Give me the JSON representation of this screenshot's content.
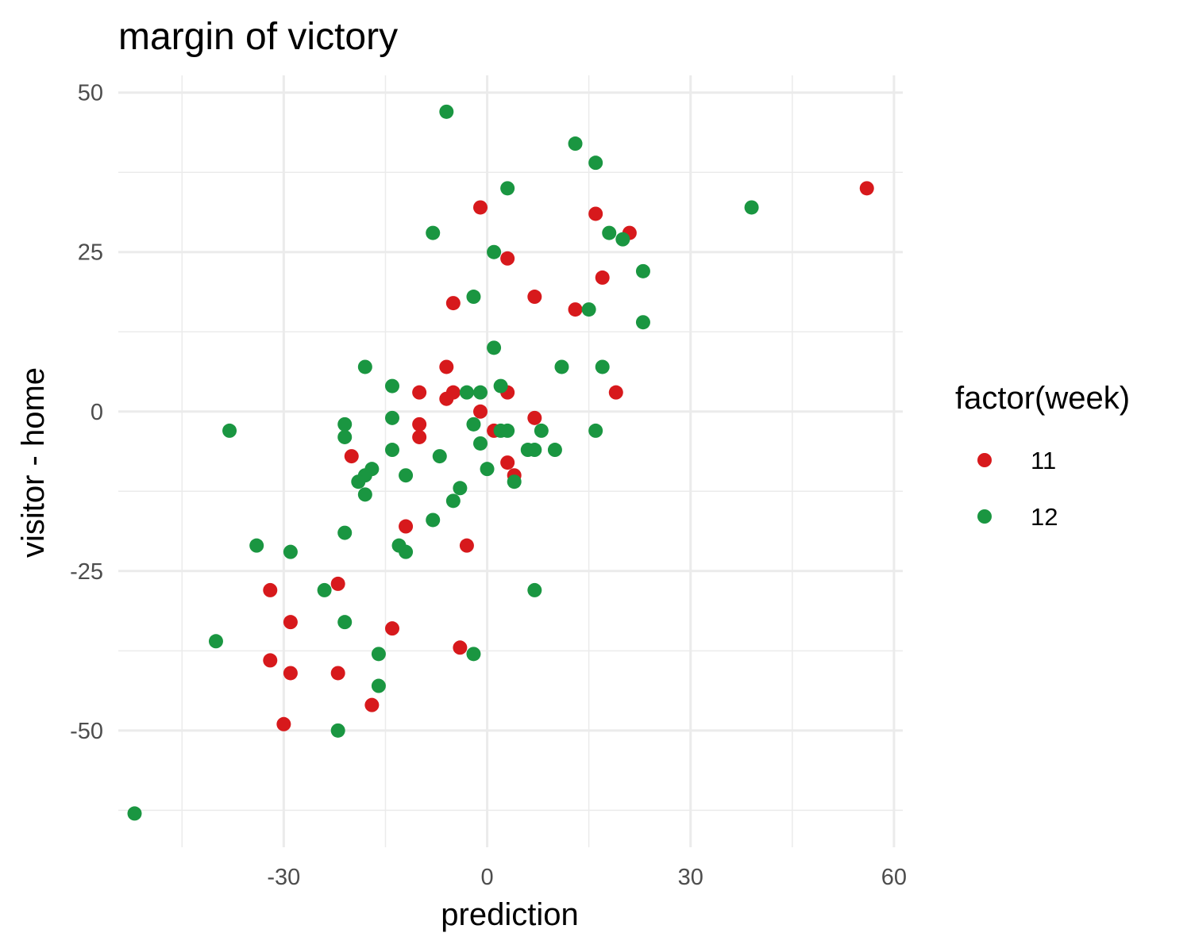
{
  "chart_data": {
    "type": "scatter",
    "title": "margin of victory",
    "xlabel": "prediction",
    "ylabel": "visitor - home",
    "xlim": [
      -54.4,
      61.3
    ],
    "ylim": [
      -68.3,
      52.7
    ],
    "x_ticks": [
      -30,
      0,
      30,
      60
    ],
    "x_tick_labels": [
      "-30",
      "0",
      "30",
      "60"
    ],
    "x_minor_ticks": [
      -45,
      -15,
      15,
      45
    ],
    "y_ticks": [
      50,
      25,
      0,
      -25,
      -50
    ],
    "y_tick_labels": [
      "50",
      "25",
      "0",
      "-25",
      "-50"
    ],
    "y_minor_ticks": [
      37.5,
      12.5,
      -12.5,
      -37.5,
      -62.5
    ],
    "grid": true,
    "legend_placement": "right",
    "legend": {
      "title": "factor(week)",
      "entries": [
        {
          "label": "11",
          "color": "#d7191c"
        },
        {
          "label": "12",
          "color": "#1a9641"
        }
      ]
    },
    "series": [
      {
        "name": "11",
        "color": "#d7191c",
        "points": [
          [
            56,
            35
          ],
          [
            -1,
            32
          ],
          [
            16,
            31
          ],
          [
            21,
            28
          ],
          [
            3,
            24
          ],
          [
            17,
            21
          ],
          [
            7,
            18
          ],
          [
            -5,
            17
          ],
          [
            13,
            16
          ],
          [
            -6,
            7
          ],
          [
            -10,
            3
          ],
          [
            -5,
            3
          ],
          [
            -6,
            2
          ],
          [
            3,
            3
          ],
          [
            19,
            3
          ],
          [
            -1,
            0
          ],
          [
            7,
            -1
          ],
          [
            -10,
            -2
          ],
          [
            1,
            -3
          ],
          [
            -10,
            -4
          ],
          [
            -20,
            -7
          ],
          [
            3,
            -8
          ],
          [
            4,
            -10
          ],
          [
            -12,
            -18
          ],
          [
            -3,
            -21
          ],
          [
            -22,
            -27
          ],
          [
            -32,
            -28
          ],
          [
            -29,
            -33
          ],
          [
            -14,
            -34
          ],
          [
            -4,
            -37
          ],
          [
            -32,
            -39
          ],
          [
            -29,
            -41
          ],
          [
            -22,
            -41
          ],
          [
            -17,
            -46
          ],
          [
            -30,
            -49
          ]
        ]
      },
      {
        "name": "12",
        "color": "#1a9641",
        "points": [
          [
            -6,
            47
          ],
          [
            13,
            42
          ],
          [
            16,
            39
          ],
          [
            3,
            35
          ],
          [
            39,
            32
          ],
          [
            -8,
            28
          ],
          [
            18,
            28
          ],
          [
            20,
            27
          ],
          [
            1,
            25
          ],
          [
            23,
            22
          ],
          [
            -2,
            18
          ],
          [
            15,
            16
          ],
          [
            23,
            14
          ],
          [
            1,
            10
          ],
          [
            -18,
            7
          ],
          [
            11,
            7
          ],
          [
            17,
            7
          ],
          [
            -14,
            4
          ],
          [
            2,
            4
          ],
          [
            -3,
            3
          ],
          [
            -1,
            3
          ],
          [
            -21,
            -2
          ],
          [
            -14,
            -1
          ],
          [
            -2,
            -2
          ],
          [
            -38,
            -3
          ],
          [
            2,
            -3
          ],
          [
            3,
            -3
          ],
          [
            8,
            -3
          ],
          [
            16,
            -3
          ],
          [
            -21,
            -4
          ],
          [
            -1,
            -5
          ],
          [
            -14,
            -6
          ],
          [
            6,
            -6
          ],
          [
            7,
            -6
          ],
          [
            10,
            -6
          ],
          [
            -7,
            -7
          ],
          [
            0,
            -9
          ],
          [
            -17,
            -9
          ],
          [
            -18,
            -10
          ],
          [
            -12,
            -10
          ],
          [
            -19,
            -11
          ],
          [
            4,
            -11
          ],
          [
            -4,
            -12
          ],
          [
            -18,
            -13
          ],
          [
            -5,
            -14
          ],
          [
            -8,
            -17
          ],
          [
            -21,
            -19
          ],
          [
            -34,
            -21
          ],
          [
            -13,
            -21
          ],
          [
            -29,
            -22
          ],
          [
            -12,
            -22
          ],
          [
            -24,
            -28
          ],
          [
            7,
            -28
          ],
          [
            -21,
            -33
          ],
          [
            -40,
            -36
          ],
          [
            -16,
            -38
          ],
          [
            -2,
            -38
          ],
          [
            -16,
            -43
          ],
          [
            -22,
            -50
          ],
          [
            -52,
            -63
          ]
        ]
      }
    ]
  }
}
